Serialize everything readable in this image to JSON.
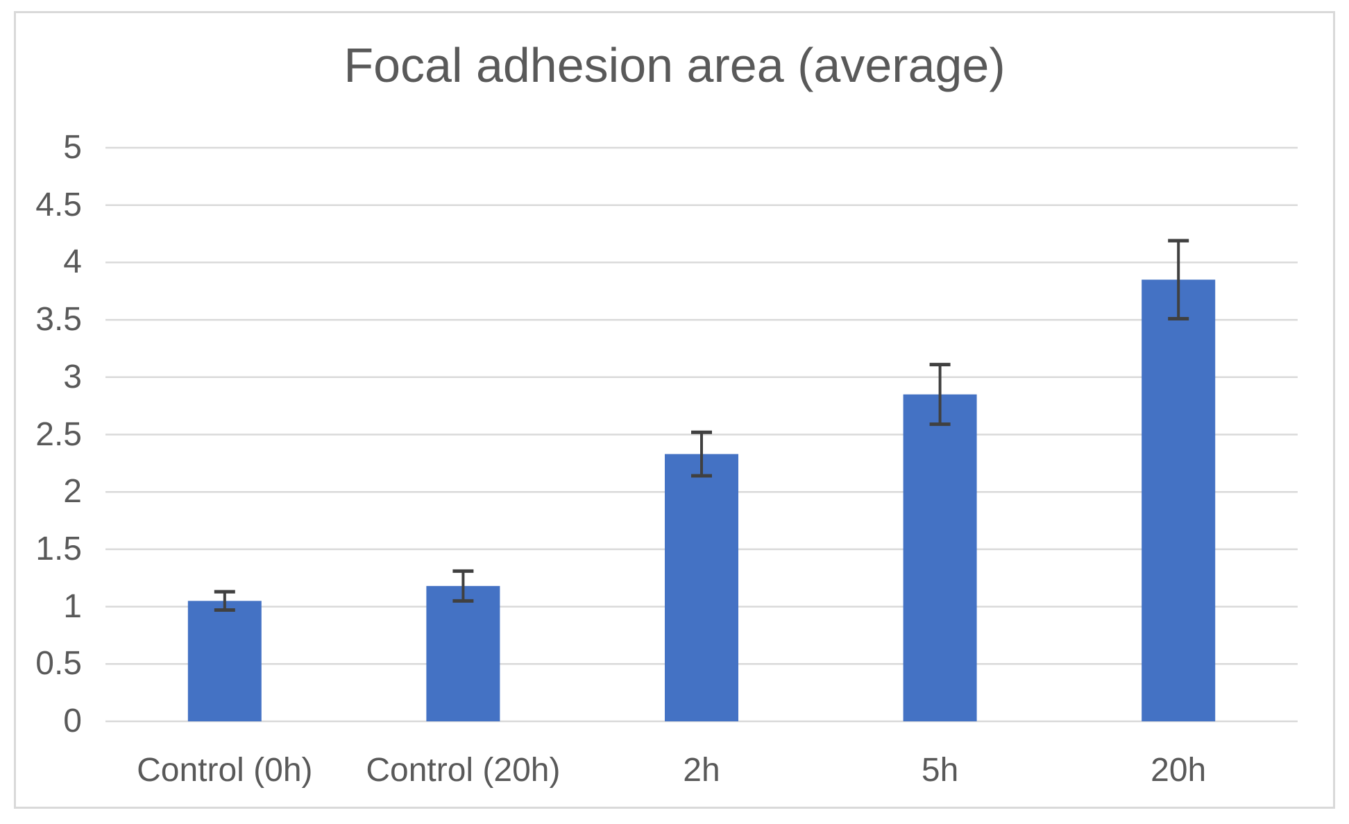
{
  "chart_data": {
    "type": "bar",
    "title": "Focal adhesion area (average)",
    "categories": [
      "Control (0h)",
      "Control (20h)",
      "2h",
      "5h",
      "20h"
    ],
    "values": [
      1.05,
      1.18,
      2.33,
      2.85,
      3.85
    ],
    "errors": [
      0.08,
      0.13,
      0.19,
      0.26,
      0.34
    ],
    "xlabel": "",
    "ylabel": "",
    "ylim": [
      0,
      5
    ],
    "y_ticks": [
      {
        "value": 0,
        "label": "0"
      },
      {
        "value": 0.5,
        "label": "0.5"
      },
      {
        "value": 1,
        "label": "1"
      },
      {
        "value": 1.5,
        "label": "1.5"
      },
      {
        "value": 2,
        "label": "2"
      },
      {
        "value": 2.5,
        "label": "2.5"
      },
      {
        "value": 3,
        "label": "3"
      },
      {
        "value": 3.5,
        "label": "3.5"
      },
      {
        "value": 4,
        "label": "4"
      },
      {
        "value": 4.5,
        "label": "4.5"
      },
      {
        "value": 5,
        "label": "5"
      }
    ],
    "grid": "horizontal",
    "legend_position": "none",
    "bar_color": "#4472C4",
    "error_bar_color": "#404040",
    "gridline_color": "#D9D9D9",
    "text_color": "#595959",
    "frame_border_color": "#D9D9D9",
    "background_color": "#FFFFFF"
  }
}
